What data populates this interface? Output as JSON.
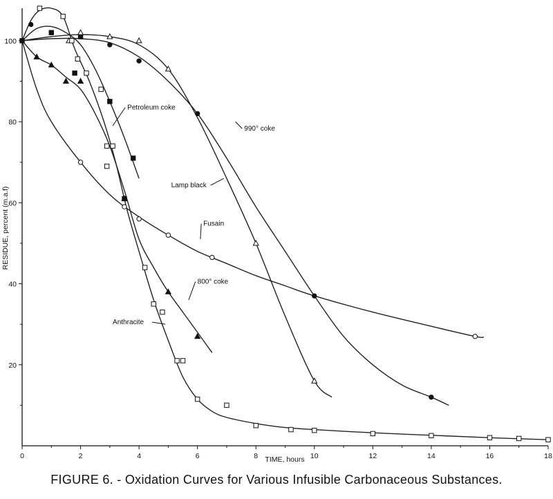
{
  "caption": "FIGURE 6. - Oxidation Curves for Various Infusible Carbonaceous Substances.",
  "chart_data": {
    "type": "scatter",
    "title": "",
    "xlabel": "TIME, hours",
    "ylabel": "RESIDUE, percent (m.a.f)",
    "xlim": [
      0,
      18
    ],
    "ylim": [
      0,
      108
    ],
    "x_ticks": [
      "0",
      "2",
      "4",
      "6",
      "8",
      "10",
      "12",
      "14",
      "16",
      "18"
    ],
    "y_ticks": [
      "20",
      "40",
      "60",
      "80",
      "100"
    ],
    "grid": false,
    "series": [
      {
        "name": "Petroleum coke",
        "marker": "filled-square",
        "points": [
          [
            0,
            100
          ],
          [
            1,
            102
          ],
          [
            1.8,
            92
          ],
          [
            2,
            101
          ],
          [
            3,
            85
          ],
          [
            3.5,
            61
          ],
          [
            3.8,
            71
          ]
        ],
        "curve": [
          [
            0,
            100
          ],
          [
            0.5,
            103
          ],
          [
            1,
            103.5
          ],
          [
            1.5,
            102
          ],
          [
            2,
            99
          ],
          [
            2.5,
            93
          ],
          [
            3,
            85
          ],
          [
            3.5,
            76
          ],
          [
            4,
            66
          ]
        ]
      },
      {
        "name": "990° coke",
        "marker": "filled-circle",
        "points": [
          [
            0.3,
            104
          ],
          [
            1,
            102
          ],
          [
            2,
            101
          ],
          [
            3,
            99
          ],
          [
            4,
            95
          ],
          [
            6,
            82
          ],
          [
            10,
            37
          ],
          [
            14,
            12
          ]
        ],
        "curve": [
          [
            0,
            100
          ],
          [
            1,
            100.5
          ],
          [
            2,
            100.5
          ],
          [
            3,
            99.5
          ],
          [
            4,
            96
          ],
          [
            5,
            90
          ],
          [
            6,
            82
          ],
          [
            7,
            71
          ],
          [
            8,
            59
          ],
          [
            9,
            48
          ],
          [
            10,
            37
          ],
          [
            11,
            27
          ],
          [
            12,
            20
          ],
          [
            13,
            15
          ],
          [
            14,
            12
          ],
          [
            14.6,
            10
          ]
        ]
      },
      {
        "name": "Lamp black",
        "marker": "open-triangle",
        "points": [
          [
            1.6,
            100
          ],
          [
            2,
            102
          ],
          [
            3,
            101
          ],
          [
            4,
            100
          ],
          [
            5,
            93
          ],
          [
            8,
            50
          ],
          [
            10,
            16
          ]
        ],
        "curve": [
          [
            0,
            100
          ],
          [
            1,
            101
          ],
          [
            2,
            101.5
          ],
          [
            3,
            101
          ],
          [
            4,
            99
          ],
          [
            5,
            93
          ],
          [
            6,
            81
          ],
          [
            7,
            66
          ],
          [
            8,
            50
          ],
          [
            9,
            32
          ],
          [
            10,
            16
          ],
          [
            10.6,
            12
          ]
        ]
      },
      {
        "name": "Fusain",
        "marker": "open-circle",
        "points": [
          [
            2,
            70
          ],
          [
            3.5,
            59
          ],
          [
            4,
            56
          ],
          [
            5,
            52
          ],
          [
            6.5,
            46.5
          ],
          [
            15.5,
            27
          ]
        ],
        "curve": [
          [
            0,
            100
          ],
          [
            0.5,
            88
          ],
          [
            1,
            80
          ],
          [
            2,
            70
          ],
          [
            3,
            62
          ],
          [
            4,
            56.5
          ],
          [
            5,
            52
          ],
          [
            6,
            48
          ],
          [
            7,
            45
          ],
          [
            8,
            42
          ],
          [
            9,
            39.5
          ],
          [
            10,
            37
          ],
          [
            12,
            33
          ],
          [
            14,
            29.5
          ],
          [
            15.5,
            27
          ],
          [
            15.8,
            26.8
          ]
        ]
      },
      {
        "name": "800° coke",
        "marker": "filled-triangle",
        "points": [
          [
            0.5,
            96
          ],
          [
            1.5,
            90
          ],
          [
            1,
            94
          ],
          [
            2,
            90
          ],
          [
            3.5,
            61
          ],
          [
            5,
            38
          ],
          [
            6,
            27
          ]
        ],
        "curve": [
          [
            0,
            100
          ],
          [
            0.5,
            96
          ],
          [
            1,
            94
          ],
          [
            1.5,
            91
          ],
          [
            2,
            88
          ],
          [
            2.5,
            82
          ],
          [
            3,
            74
          ],
          [
            3.5,
            63
          ],
          [
            4,
            51
          ],
          [
            4.5,
            44
          ],
          [
            5,
            38
          ],
          [
            5.5,
            33
          ],
          [
            6,
            28
          ],
          [
            6.5,
            23
          ]
        ]
      },
      {
        "name": "Anthracite",
        "marker": "open-square",
        "points": [
          [
            0.6,
            108
          ],
          [
            1.4,
            106
          ],
          [
            1.7,
            100
          ],
          [
            1.9,
            95.5
          ],
          [
            2.2,
            92
          ],
          [
            2.7,
            88
          ],
          [
            2.9,
            74
          ],
          [
            3.1,
            74
          ],
          [
            2.9,
            69
          ],
          [
            4.2,
            44
          ],
          [
            4.5,
            35
          ],
          [
            4.8,
            33
          ],
          [
            5.3,
            21
          ],
          [
            5.5,
            21
          ],
          [
            6,
            11.5
          ],
          [
            7,
            10
          ],
          [
            8,
            5
          ],
          [
            9.2,
            4
          ],
          [
            10,
            3.8
          ],
          [
            12,
            3
          ],
          [
            14,
            2.5
          ],
          [
            16,
            2
          ],
          [
            17,
            1.8
          ],
          [
            18,
            1.5
          ]
        ],
        "curve": [
          [
            0,
            100
          ],
          [
            0.3,
            105
          ],
          [
            0.6,
            107.5
          ],
          [
            1,
            108
          ],
          [
            1.4,
            106
          ],
          [
            1.8,
            98
          ],
          [
            2.3,
            90
          ],
          [
            2.8,
            80
          ],
          [
            3.2,
            70
          ],
          [
            3.6,
            58
          ],
          [
            4,
            48
          ],
          [
            4.5,
            36
          ],
          [
            5,
            26
          ],
          [
            5.5,
            17
          ],
          [
            6,
            11.5
          ],
          [
            6.5,
            8.5
          ],
          [
            7,
            7
          ],
          [
            8,
            5.5
          ],
          [
            9,
            4.5
          ],
          [
            10,
            4
          ],
          [
            12,
            3.2
          ],
          [
            14,
            2.6
          ],
          [
            16,
            2
          ],
          [
            18,
            1.5
          ]
        ]
      }
    ],
    "annotations": [
      {
        "text": "Petroleum coke",
        "series": "Petroleum coke",
        "at": [
          3.6,
          83
        ],
        "anchor": [
          3.1,
          79
        ]
      },
      {
        "text": "990° coke",
        "series": "990° coke",
        "at": [
          7.6,
          77.8
        ],
        "anchor": [
          7.3,
          80
        ]
      },
      {
        "text": "Lamp black",
        "series": "Lamp black",
        "at": [
          5.1,
          63.8
        ],
        "anchor": [
          6.9,
          66
        ]
      },
      {
        "text": "Fusain",
        "series": "Fusain",
        "at": [
          6.2,
          54.3
        ],
        "anchor": [
          6.1,
          51
        ]
      },
      {
        "text": "800° coke",
        "series": "800° coke",
        "at": [
          6.0,
          40
        ],
        "anchor": [
          5.7,
          36
        ]
      },
      {
        "text": "Anthracite",
        "series": "Anthracite",
        "at": [
          3.1,
          30
        ],
        "anchor": [
          4.9,
          30
        ]
      }
    ]
  }
}
